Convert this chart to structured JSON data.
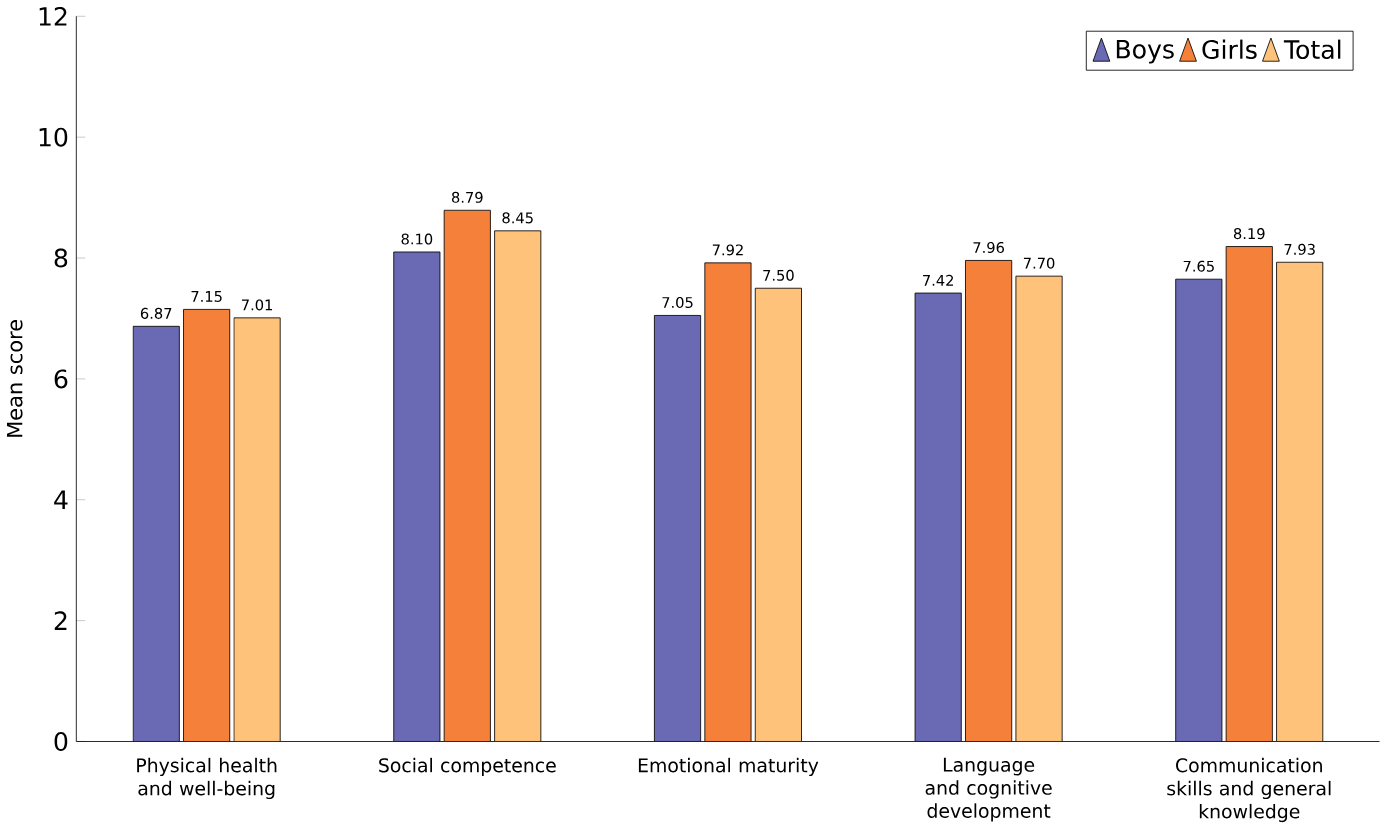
{
  "chart_data": {
    "type": "bar",
    "ylabel": "Mean score",
    "categories": [
      "Physical health and well-being",
      "Social competence",
      "Emotional maturity",
      "Language and cognitive development",
      "Communication skills and general knowledge"
    ],
    "series": [
      {
        "name": "Boys",
        "color": "#6a6ab4",
        "values": [
          6.87,
          8.1,
          7.05,
          7.42,
          7.65
        ],
        "value_labels": [
          "6.87",
          "8.10",
          "7.05",
          "7.42",
          "7.65"
        ]
      },
      {
        "name": "Girls",
        "color": "#f5803a",
        "values": [
          7.15,
          8.79,
          7.92,
          7.96,
          8.19
        ],
        "value_labels": [
          "7.15",
          "8.79",
          "7.92",
          "7.96",
          "8.19"
        ]
      },
      {
        "name": "Total",
        "color": "#ffc27a",
        "values": [
          7.01,
          8.45,
          7.5,
          7.7,
          7.93
        ],
        "value_labels": [
          "7.01",
          "8.45",
          "7.50",
          "7.70",
          "7.93"
        ]
      }
    ],
    "ylim": [
      0,
      12
    ],
    "yticks": [
      0,
      2,
      4,
      6,
      8,
      10,
      12
    ],
    "grid": false,
    "legend": "top right"
  }
}
